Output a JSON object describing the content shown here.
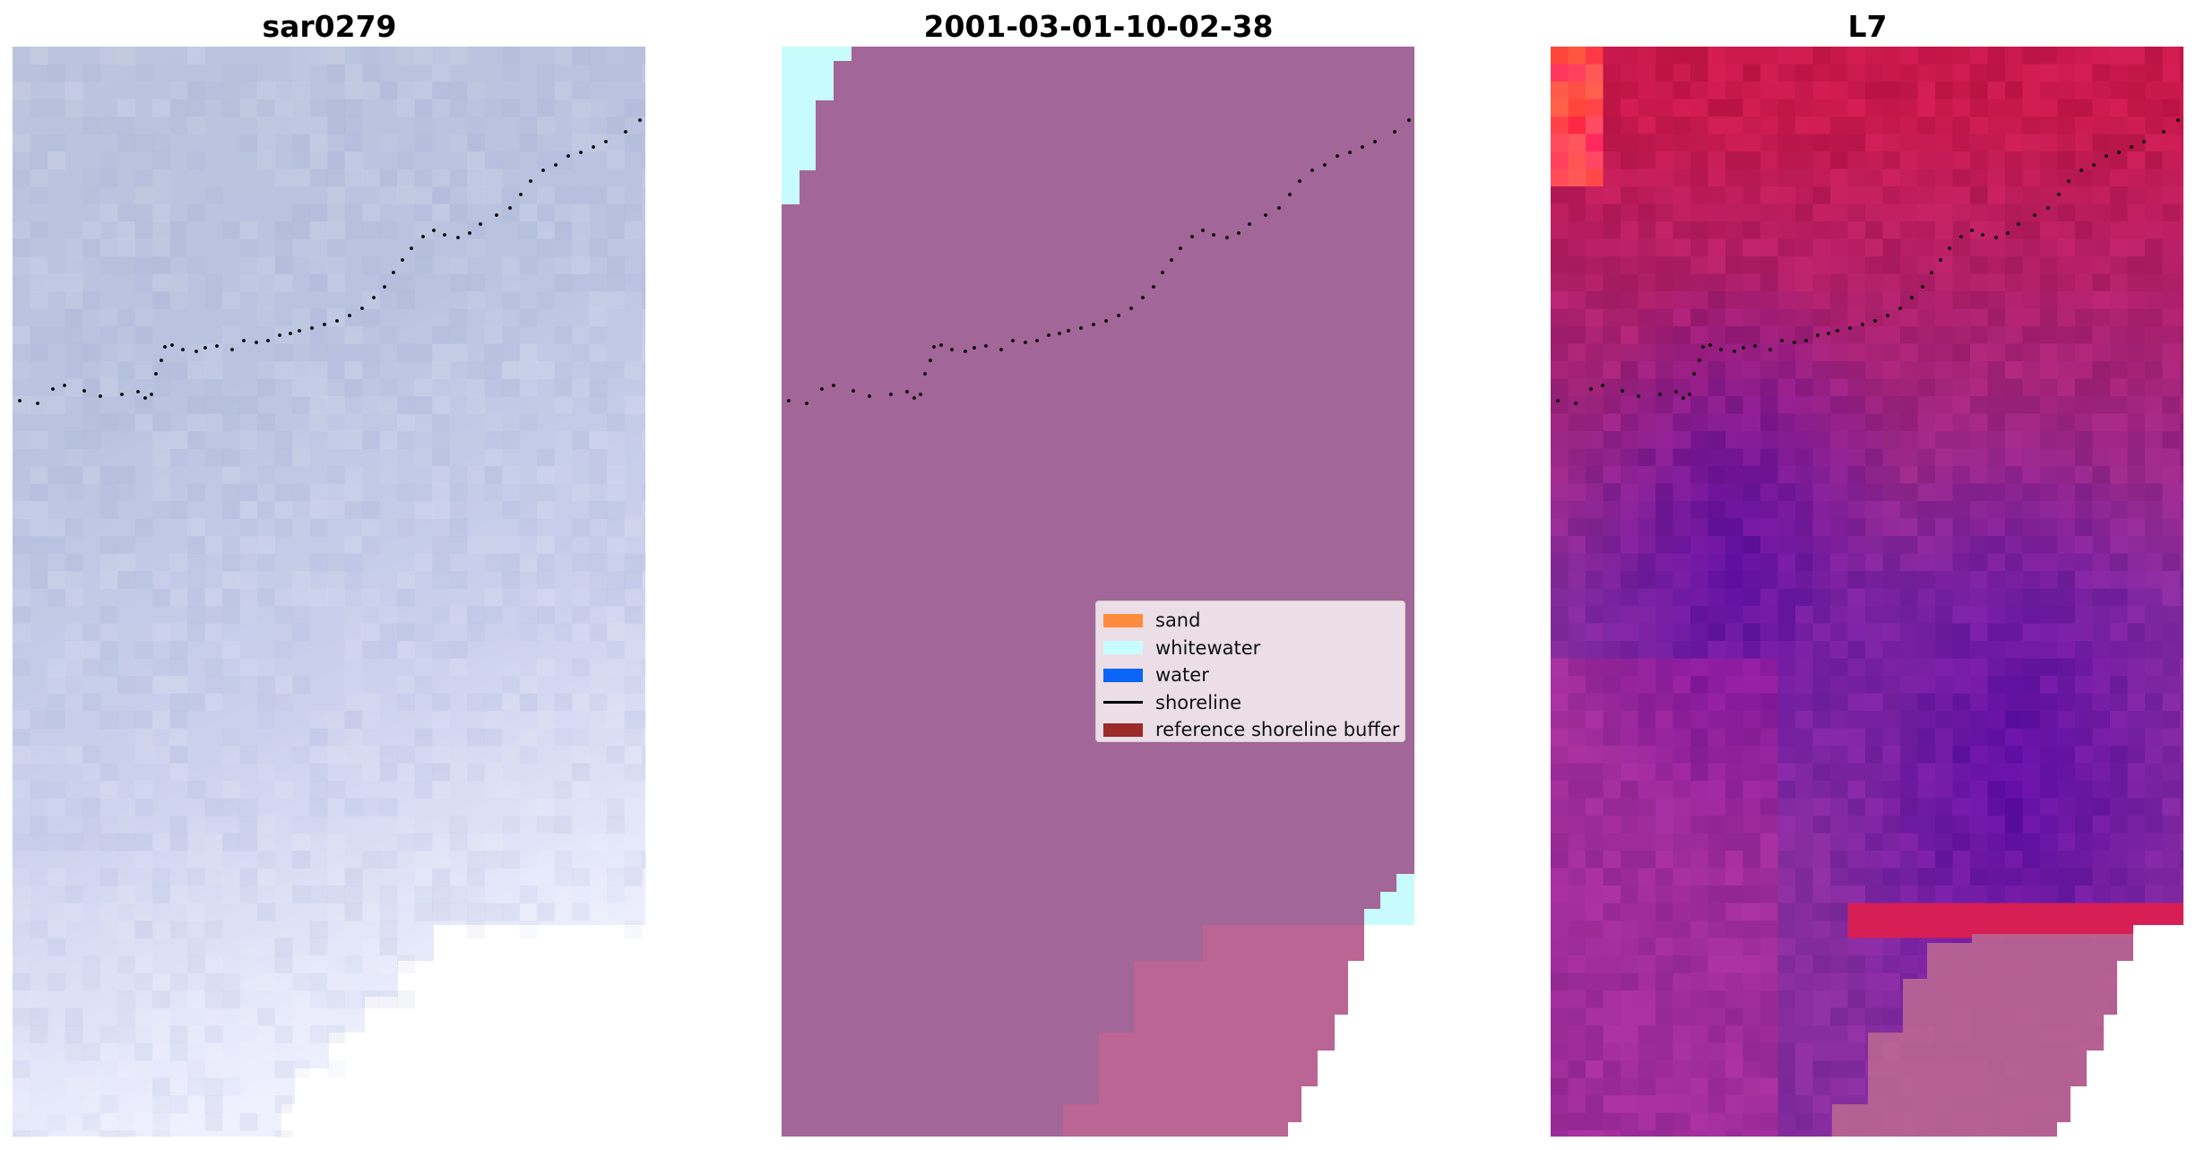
{
  "panels": [
    {
      "title": "sar0279",
      "kind": "rgb-image",
      "tint": "#c3c9e6"
    },
    {
      "title": "2001-03-01-10-02-38",
      "kind": "classified-image"
    },
    {
      "title": "L7",
      "kind": "index-image"
    }
  ],
  "colors": {
    "sand": "#ff8c3d",
    "whitewater": "#c8fcfc",
    "water": "#0a64f5",
    "shoreline": "#000000",
    "reference_buffer": "#9b2a2a",
    "classified_background": "#a36698",
    "classified_buffer_overlay": "#ba6593"
  },
  "legend": {
    "items": [
      {
        "label": "sand",
        "swatch": "box",
        "color": "#ff8c3d"
      },
      {
        "label": "whitewater",
        "swatch": "box",
        "color": "#c8fcfc"
      },
      {
        "label": "water",
        "swatch": "box",
        "color": "#0a64f5"
      },
      {
        "label": "shoreline",
        "swatch": "line",
        "color": "#000000"
      },
      {
        "label": "reference shoreline buffer",
        "swatch": "box",
        "color": "#9b2a2a"
      }
    ]
  }
}
